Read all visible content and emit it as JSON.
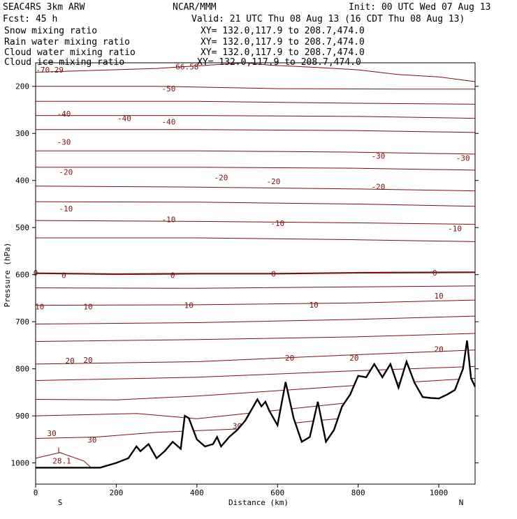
{
  "header": {
    "model": "SEAC4RS  3km ARW",
    "org": "NCAR/MMM",
    "init": "Init: 00 UTC Wed 07 Aug 13",
    "fcst": "Fcst:   45 h",
    "valid": "Valid: 21 UTC Thu 08 Aug 13 (16 CDT Thu 08 Aug 13)"
  },
  "fields": [
    {
      "name": "Snow mixing ratio",
      "xy": "XY= 132.0,117.9 to 208.7,474.0",
      "color": "#000000"
    },
    {
      "name": "Rain water mixing ratio",
      "xy": "XY= 132.0,117.9 to 208.7,474.0",
      "color": "#e00000"
    },
    {
      "name": "Cloud water mixing ratio",
      "xy": "XY= 132.0,117.9 to 208.7,474.0",
      "color": "#0000d0"
    },
    {
      "name": "Cloud ice mixing ratio",
      "xy": "XY= 132.0,117.9 to 208.7,474.0",
      "color": "#000000"
    }
  ],
  "colors": {
    "contour": "#7a1010",
    "terrain": "#000000",
    "frame": "#000000"
  },
  "chart_data": {
    "type": "line",
    "title": "",
    "xlabel": "Distance (km)",
    "ylabel": "Pressure (hPa)",
    "xlim": [
      0,
      1090
    ],
    "ylim": [
      1045,
      150
    ],
    "x_ticks": [
      "0",
      "200",
      "400",
      "600",
      "800",
      "1000"
    ],
    "y_ticks": [
      "200",
      "300",
      "400",
      "500",
      "600",
      "700",
      "800",
      "900",
      "1000"
    ],
    "x_tick_values": [
      0,
      200,
      400,
      600,
      800,
      1000
    ],
    "y_tick_values": [
      200,
      300,
      400,
      500,
      600,
      700,
      800,
      900,
      1000
    ],
    "left_end_label": "S",
    "right_end_label": "N",
    "isotherms": [
      {
        "level": -60,
        "points": [
          [
            0,
            170
          ],
          [
            300,
            162
          ],
          [
            520,
            150
          ],
          [
            580,
            155
          ],
          [
            700,
            160
          ],
          [
            800,
            165
          ],
          [
            900,
            175
          ],
          [
            1000,
            180
          ],
          [
            1090,
            190
          ]
        ]
      },
      {
        "level": -50,
        "points": [
          [
            0,
            200
          ],
          [
            300,
            200
          ],
          [
            600,
            205
          ],
          [
            900,
            206
          ],
          [
            1090,
            206
          ]
        ]
      },
      {
        "level": -40,
        "points": [
          [
            0,
            232
          ],
          [
            400,
            232
          ],
          [
            800,
            236
          ],
          [
            1090,
            238
          ]
        ]
      },
      {
        "level": -40,
        "points": [
          [
            0,
            262
          ],
          [
            400,
            262
          ],
          [
            800,
            264
          ],
          [
            1090,
            268
          ]
        ]
      },
      {
        "level": -30,
        "points": [
          [
            0,
            292
          ],
          [
            400,
            292
          ],
          [
            800,
            294
          ],
          [
            1090,
            298
          ]
        ]
      },
      {
        "level": -30,
        "points": [
          [
            0,
            337
          ],
          [
            400,
            337
          ],
          [
            800,
            340
          ],
          [
            1090,
            344
          ]
        ]
      },
      {
        "level": -20,
        "points": [
          [
            0,
            372
          ],
          [
            400,
            372
          ],
          [
            800,
            374
          ],
          [
            1090,
            378
          ]
        ]
      },
      {
        "level": -20,
        "points": [
          [
            0,
            412
          ],
          [
            400,
            414
          ],
          [
            800,
            418
          ],
          [
            1090,
            422
          ]
        ]
      },
      {
        "level": -10,
        "points": [
          [
            0,
            445
          ],
          [
            400,
            446
          ],
          [
            800,
            450
          ],
          [
            1090,
            455
          ]
        ]
      },
      {
        "level": -10,
        "points": [
          [
            0,
            485
          ],
          [
            400,
            487
          ],
          [
            800,
            490
          ],
          [
            1090,
            493
          ]
        ]
      },
      {
        "level": -10,
        "points": [
          [
            0,
            522
          ],
          [
            400,
            522
          ],
          [
            800,
            526
          ],
          [
            1090,
            530
          ]
        ]
      },
      {
        "level": 0,
        "bold": true,
        "points": [
          [
            0,
            597
          ],
          [
            200,
            599
          ],
          [
            400,
            598
          ],
          [
            600,
            598
          ],
          [
            800,
            596
          ],
          [
            1090,
            595
          ]
        ]
      },
      {
        "level": 0,
        "points": [
          [
            0,
            628
          ],
          [
            400,
            629
          ],
          [
            800,
            626
          ],
          [
            1090,
            624
          ]
        ]
      },
      {
        "level": 10,
        "points": [
          [
            0,
            665
          ],
          [
            400,
            664
          ],
          [
            800,
            660
          ],
          [
            1090,
            654
          ]
        ]
      },
      {
        "level": 10,
        "points": [
          [
            0,
            705
          ],
          [
            400,
            702
          ],
          [
            800,
            695
          ],
          [
            1090,
            688
          ]
        ]
      },
      {
        "level": 10,
        "points": [
          [
            0,
            742
          ],
          [
            400,
            738
          ],
          [
            800,
            732
          ],
          [
            1090,
            725
          ]
        ]
      },
      {
        "level": 20,
        "points": [
          [
            0,
            790
          ],
          [
            400,
            785
          ],
          [
            800,
            770
          ],
          [
            1090,
            760
          ]
        ]
      },
      {
        "level": 20,
        "points": [
          [
            0,
            825
          ],
          [
            400,
            818
          ],
          [
            800,
            804
          ],
          [
            1090,
            795
          ]
        ]
      },
      {
        "level": 20,
        "points": [
          [
            0,
            865
          ],
          [
            200,
            866
          ],
          [
            400,
            858
          ],
          [
            800,
            835
          ],
          [
            1090,
            820
          ]
        ]
      },
      {
        "level": 30,
        "points": [
          [
            0,
            900
          ],
          [
            250,
            895
          ],
          [
            400,
            906
          ],
          [
            800,
            870
          ],
          [
            1090,
            860
          ]
        ]
      },
      {
        "level": 30,
        "points": [
          [
            0,
            948
          ],
          [
            150,
            945
          ],
          [
            300,
            935
          ],
          [
            500,
            928
          ],
          [
            700,
            910
          ],
          [
            1090,
            880
          ]
        ]
      },
      {
        "level": 30,
        "points": [
          [
            0,
            990
          ],
          [
            60,
            978
          ],
          [
            120,
            996
          ],
          [
            140,
            1012
          ]
        ]
      }
    ],
    "contour_labels": [
      {
        "text": "-70.29",
        "x": 35,
        "p": 165
      },
      {
        "text": "-66.58",
        "x": 370,
        "p": 158
      },
      {
        "text": "-50",
        "x": 330,
        "p": 205
      },
      {
        "text": "-40",
        "x": 70,
        "p": 258
      },
      {
        "text": "-40",
        "x": 220,
        "p": 268
      },
      {
        "text": "-40",
        "x": 330,
        "p": 275
      },
      {
        "text": "-30",
        "x": 70,
        "p": 318
      },
      {
        "text": "-30",
        "x": 850,
        "p": 348
      },
      {
        "text": "-30",
        "x": 1060,
        "p": 352
      },
      {
        "text": "-20",
        "x": 75,
        "p": 382
      },
      {
        "text": "-20",
        "x": 460,
        "p": 394
      },
      {
        "text": "-20",
        "x": 590,
        "p": 402
      },
      {
        "text": "-20",
        "x": 850,
        "p": 413
      },
      {
        "text": "-10",
        "x": 75,
        "p": 460
      },
      {
        "text": "-10",
        "x": 330,
        "p": 483
      },
      {
        "text": "-10",
        "x": 600,
        "p": 491
      },
      {
        "text": "-10",
        "x": 1040,
        "p": 502
      },
      {
        "text": "0",
        "x": 0,
        "p": 596
      },
      {
        "text": "0",
        "x": 70,
        "p": 601
      },
      {
        "text": "0",
        "x": 340,
        "p": 601
      },
      {
        "text": "0",
        "x": 590,
        "p": 598
      },
      {
        "text": "0",
        "x": 990,
        "p": 596
      },
      {
        "text": "10",
        "x": 10,
        "p": 668
      },
      {
        "text": "10",
        "x": 130,
        "p": 668
      },
      {
        "text": "10",
        "x": 380,
        "p": 665
      },
      {
        "text": "10",
        "x": 690,
        "p": 664
      },
      {
        "text": "10",
        "x": 1000,
        "p": 645
      },
      {
        "text": "20",
        "x": 85,
        "p": 783
      },
      {
        "text": "20",
        "x": 130,
        "p": 781
      },
      {
        "text": "20",
        "x": 630,
        "p": 777
      },
      {
        "text": "20",
        "x": 790,
        "p": 777
      },
      {
        "text": "20",
        "x": 1000,
        "p": 758
      },
      {
        "text": "30",
        "x": 40,
        "p": 937
      },
      {
        "text": "30",
        "x": 140,
        "p": 951
      },
      {
        "text": "30",
        "x": 500,
        "p": 921
      },
      {
        "text": "30",
        "x": 770,
        "p": 888
      },
      {
        "text": "L",
        "x": 60,
        "p": 973
      },
      {
        "text": "28.1",
        "x": 65,
        "p": 995
      }
    ],
    "terrain": {
      "x": [
        0,
        160,
        200,
        230,
        250,
        260,
        280,
        300,
        320,
        340,
        360,
        370,
        380,
        400,
        420,
        440,
        450,
        460,
        480,
        500,
        520,
        550,
        560,
        570,
        580,
        600,
        620,
        640,
        660,
        680,
        700,
        720,
        740,
        760,
        780,
        800,
        820,
        840,
        860,
        880,
        900,
        920,
        940,
        960,
        980,
        1000,
        1020,
        1040,
        1060,
        1070,
        1080,
        1090
      ],
      "p": [
        1010,
        1010,
        1000,
        990,
        965,
        975,
        960,
        990,
        975,
        955,
        970,
        900,
        905,
        950,
        965,
        960,
        945,
        965,
        945,
        930,
        910,
        865,
        880,
        870,
        890,
        920,
        828,
        905,
        955,
        945,
        870,
        955,
        930,
        880,
        855,
        815,
        818,
        790,
        818,
        790,
        840,
        785,
        830,
        860,
        862,
        863,
        855,
        845,
        800,
        740,
        820,
        838
      ]
    }
  }
}
